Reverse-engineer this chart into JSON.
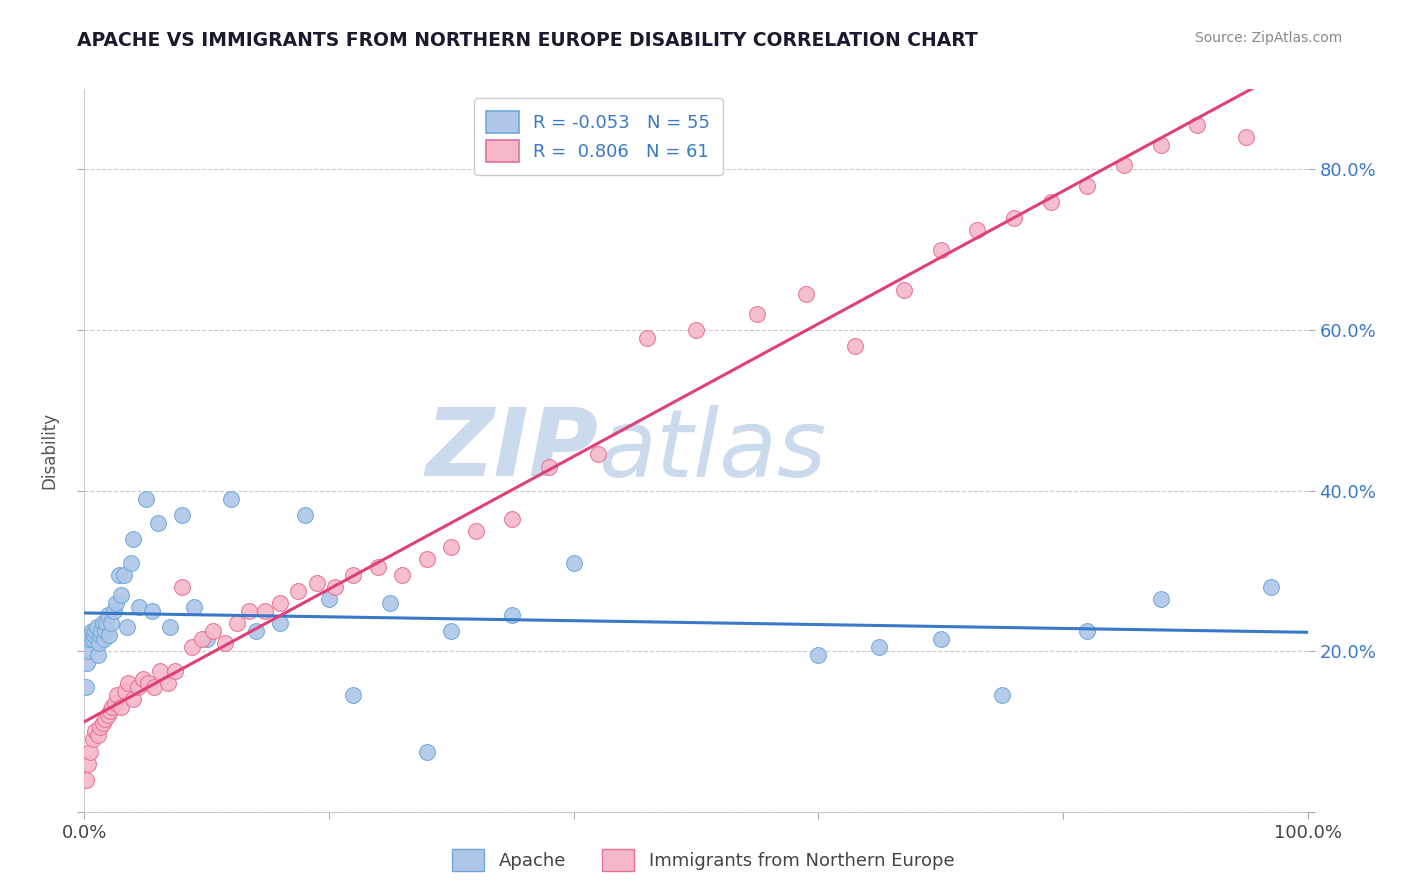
{
  "title": "APACHE VS IMMIGRANTS FROM NORTHERN EUROPE DISABILITY CORRELATION CHART",
  "source": "Source: ZipAtlas.com",
  "ylabel": "Disability",
  "xlim": [
    0.0,
    1.0
  ],
  "ylim": [
    0.0,
    0.9
  ],
  "yticks": [
    0.0,
    0.2,
    0.4,
    0.6,
    0.8
  ],
  "right_ytick_labels": [
    "",
    "20.0%",
    "40.0%",
    "60.0%",
    "80.0%"
  ],
  "xticks": [
    0.0,
    0.2,
    0.4,
    0.6,
    0.8,
    1.0
  ],
  "xtick_labels": [
    "0.0%",
    "",
    "",
    "",
    "",
    "100.0%"
  ],
  "apache_color": "#aec6e8",
  "apache_edge": "#6fa8d8",
  "immigrants_color": "#f4b8c8",
  "immigrants_edge": "#e87090",
  "line_blue": "#3a78c9",
  "line_pink": "#e0407a",
  "legend_label1": "R = -0.053   N = 55",
  "legend_label2": "R =  0.806   N = 61",
  "apache_x": [
    0.001,
    0.002,
    0.003,
    0.004,
    0.005,
    0.006,
    0.007,
    0.008,
    0.009,
    0.01,
    0.011,
    0.012,
    0.013,
    0.014,
    0.015,
    0.016,
    0.017,
    0.018,
    0.019,
    0.02,
    0.022,
    0.024,
    0.026,
    0.028,
    0.03,
    0.032,
    0.035,
    0.038,
    0.04,
    0.045,
    0.05,
    0.055,
    0.06,
    0.07,
    0.08,
    0.09,
    0.1,
    0.12,
    0.14,
    0.16,
    0.18,
    0.2,
    0.22,
    0.25,
    0.28,
    0.3,
    0.35,
    0.4,
    0.6,
    0.65,
    0.7,
    0.75,
    0.82,
    0.88,
    0.97
  ],
  "apache_y": [
    0.155,
    0.185,
    0.2,
    0.215,
    0.22,
    0.225,
    0.215,
    0.22,
    0.225,
    0.23,
    0.195,
    0.21,
    0.22,
    0.225,
    0.235,
    0.215,
    0.225,
    0.235,
    0.245,
    0.22,
    0.235,
    0.25,
    0.26,
    0.295,
    0.27,
    0.295,
    0.23,
    0.31,
    0.34,
    0.255,
    0.39,
    0.25,
    0.36,
    0.23,
    0.37,
    0.255,
    0.215,
    0.39,
    0.225,
    0.235,
    0.37,
    0.265,
    0.145,
    0.26,
    0.075,
    0.225,
    0.245,
    0.31,
    0.195,
    0.205,
    0.215,
    0.145,
    0.225,
    0.265,
    0.28
  ],
  "immigrants_x": [
    0.001,
    0.003,
    0.005,
    0.007,
    0.009,
    0.011,
    0.013,
    0.015,
    0.017,
    0.019,
    0.021,
    0.023,
    0.025,
    0.027,
    0.03,
    0.033,
    0.036,
    0.04,
    0.044,
    0.048,
    0.052,
    0.057,
    0.062,
    0.068,
    0.074,
    0.08,
    0.088,
    0.096,
    0.105,
    0.115,
    0.125,
    0.135,
    0.148,
    0.16,
    0.175,
    0.19,
    0.205,
    0.22,
    0.24,
    0.26,
    0.28,
    0.3,
    0.32,
    0.35,
    0.38,
    0.42,
    0.46,
    0.5,
    0.55,
    0.59,
    0.63,
    0.67,
    0.7,
    0.73,
    0.76,
    0.79,
    0.82,
    0.85,
    0.88,
    0.91,
    0.95
  ],
  "immigrants_y": [
    0.04,
    0.06,
    0.075,
    0.09,
    0.1,
    0.095,
    0.105,
    0.11,
    0.115,
    0.12,
    0.125,
    0.13,
    0.135,
    0.145,
    0.13,
    0.15,
    0.16,
    0.14,
    0.155,
    0.165,
    0.16,
    0.155,
    0.175,
    0.16,
    0.175,
    0.28,
    0.205,
    0.215,
    0.225,
    0.21,
    0.235,
    0.25,
    0.25,
    0.26,
    0.275,
    0.285,
    0.28,
    0.295,
    0.305,
    0.295,
    0.315,
    0.33,
    0.35,
    0.365,
    0.43,
    0.445,
    0.59,
    0.6,
    0.62,
    0.645,
    0.58,
    0.65,
    0.7,
    0.725,
    0.74,
    0.76,
    0.78,
    0.805,
    0.83,
    0.855,
    0.84
  ],
  "background_color": "#ffffff",
  "grid_color": "#cccccc",
  "watermark_zip": "ZIP",
  "watermark_atlas": "atlas",
  "watermark_color": "#ccdaee"
}
